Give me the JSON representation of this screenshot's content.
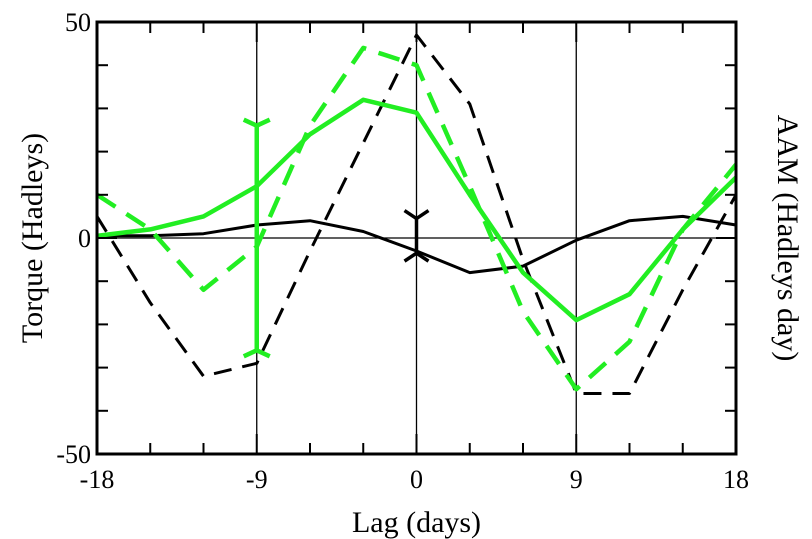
{
  "chart_data": {
    "type": "line",
    "title": "",
    "xlabel": "Lag (days)",
    "ylabel": "Torque (Hadleys)",
    "ylabel_right": "AAM (Hadleys day)",
    "xlim": [
      -18,
      18
    ],
    "ylim": [
      -50,
      50
    ],
    "x_ticks": [
      -18,
      -9,
      0,
      9,
      18
    ],
    "x_tick_labels": [
      "-18",
      "-9",
      "0",
      "9",
      "18"
    ],
    "y_ticks": [
      -50,
      0,
      50
    ],
    "y_tick_labels": [
      "-50",
      "0",
      "50"
    ],
    "reference_lines": {
      "x": [
        -9,
        0,
        9
      ],
      "y": [
        0
      ]
    },
    "grid": false,
    "series": [
      {
        "color": "#000000",
        "style": "solid",
        "x": [
          -18,
          -15,
          -12,
          -9,
          -6,
          -3,
          0,
          3,
          6,
          9,
          12,
          15,
          18
        ],
        "y": [
          0.5,
          0.5,
          1,
          3,
          4,
          1.5,
          -3,
          -8,
          -6.5,
          -0.5,
          4,
          5,
          3
        ],
        "errorbar": {
          "x": 0,
          "low": -3.5,
          "high": 4.5
        }
      },
      {
        "color": "#000000",
        "style": "dashed",
        "x": [
          -18,
          -15,
          -12,
          -9,
          -6,
          -3,
          0,
          3,
          6,
          9,
          12,
          15,
          18
        ],
        "y": [
          5,
          -15,
          -32,
          -29,
          -3,
          22,
          47,
          31,
          -5,
          -36,
          -36,
          -12,
          10
        ]
      },
      {
        "color": "#22ee22",
        "style": "solid",
        "x": [
          -18,
          -15,
          -12,
          -9,
          -6,
          -3,
          0,
          3,
          6,
          9,
          12,
          15,
          18
        ],
        "y": [
          0.5,
          2,
          5,
          12,
          24,
          32,
          29,
          10,
          -8,
          -19,
          -13,
          2,
          14
        ],
        "errorbar": {
          "x": -9,
          "low": -26,
          "high": 26
        }
      },
      {
        "color": "#22ee22",
        "style": "dashed",
        "x": [
          -18,
          -15,
          -12,
          -9,
          -6,
          -3,
          0,
          3,
          6,
          9,
          12,
          15,
          18
        ],
        "y": [
          10,
          2,
          -12,
          -2,
          26,
          44,
          40,
          12,
          -17,
          -35,
          -24,
          2,
          17
        ]
      }
    ]
  }
}
